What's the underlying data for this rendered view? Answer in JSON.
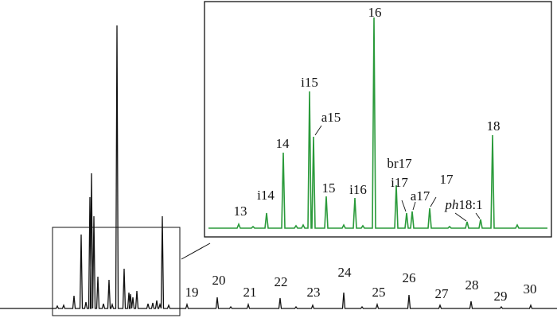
{
  "main_labels": [
    "19",
    "20",
    "21",
    "22",
    "23",
    "24",
    "25",
    "26",
    "27",
    "28",
    "29",
    "30"
  ],
  "inset_labels": [
    "13",
    "i14",
    "14",
    "i15",
    "a15",
    "15",
    "i16",
    "16",
    "br17",
    "i17",
    "a17",
    "17",
    "18"
  ],
  "inset_label_ph": {
    "prefix": "ph",
    "rest": "18:1"
  }
}
